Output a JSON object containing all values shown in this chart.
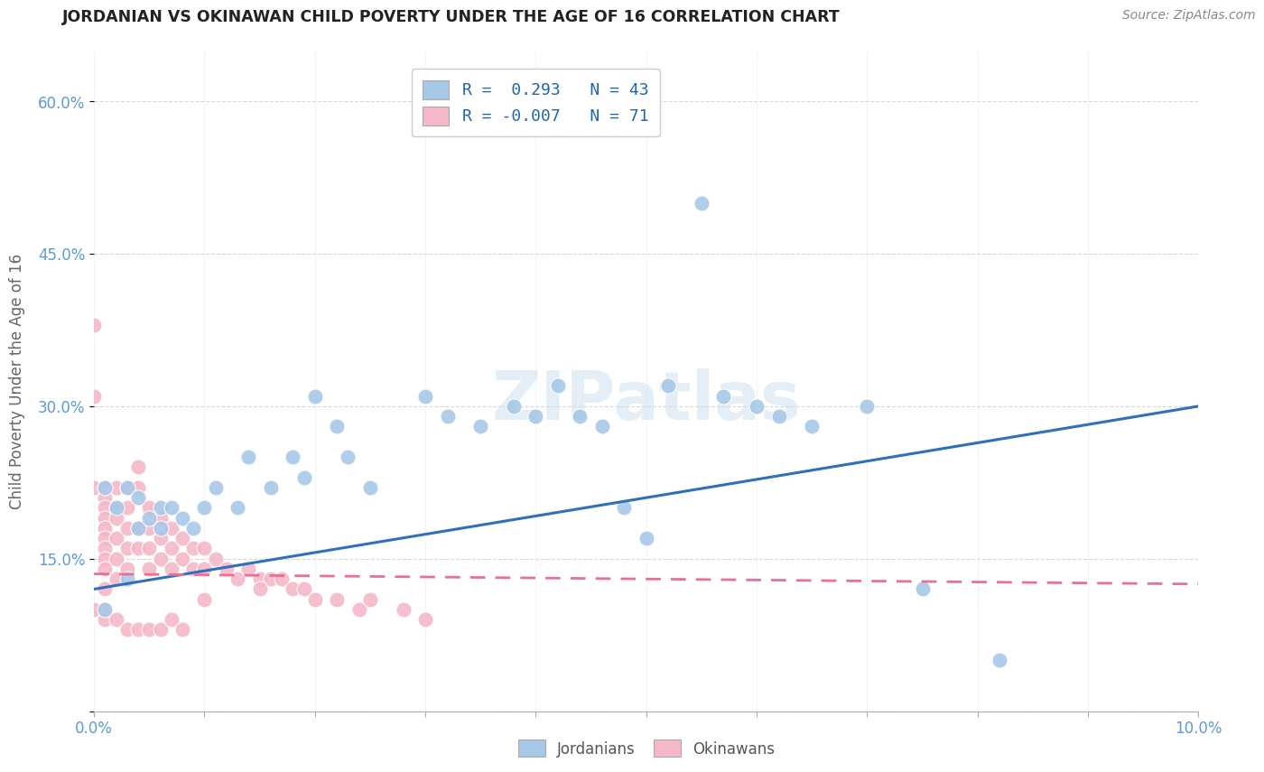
{
  "title": "JORDANIAN VS OKINAWAN CHILD POVERTY UNDER THE AGE OF 16 CORRELATION CHART",
  "source": "Source: ZipAtlas.com",
  "ylabel": "Child Poverty Under the Age of 16",
  "xlim": [
    0.0,
    0.1
  ],
  "ylim": [
    0.0,
    0.65
  ],
  "xticks": [
    0.0,
    0.01,
    0.02,
    0.03,
    0.04,
    0.05,
    0.06,
    0.07,
    0.08,
    0.09,
    0.1
  ],
  "xticklabels": [
    "0.0%",
    "",
    "",
    "",
    "",
    "",
    "",
    "",
    "",
    "",
    "10.0%"
  ],
  "yticks": [
    0.0,
    0.15,
    0.3,
    0.45,
    0.6
  ],
  "yticklabels": [
    "",
    "15.0%",
    "30.0%",
    "45.0%",
    "60.0%"
  ],
  "blue_color": "#a8c8e8",
  "pink_color": "#f4b8c8",
  "blue_edge_color": "#7aaed0",
  "pink_edge_color": "#e890a8",
  "blue_line_color": "#3070b8",
  "pink_line_color": "#e87090",
  "grid_color": "#d8d8d8",
  "watermark": "ZIPatlas",
  "legend_R_blue": "0.293",
  "legend_N_blue": "43",
  "legend_R_pink": "-0.007",
  "legend_N_pink": "71",
  "blue_x": [
    0.001,
    0.002,
    0.003,
    0.004,
    0.004,
    0.005,
    0.006,
    0.006,
    0.007,
    0.008,
    0.009,
    0.01,
    0.011,
    0.013,
    0.014,
    0.016,
    0.018,
    0.019,
    0.02,
    0.022,
    0.023,
    0.025,
    0.03,
    0.032,
    0.035,
    0.038,
    0.04,
    0.042,
    0.044,
    0.046,
    0.048,
    0.05,
    0.052,
    0.055,
    0.057,
    0.06,
    0.062,
    0.065,
    0.07,
    0.075,
    0.082,
    0.001,
    0.003
  ],
  "blue_y": [
    0.22,
    0.2,
    0.22,
    0.21,
    0.18,
    0.19,
    0.2,
    0.18,
    0.2,
    0.19,
    0.18,
    0.2,
    0.22,
    0.2,
    0.25,
    0.22,
    0.25,
    0.23,
    0.31,
    0.28,
    0.25,
    0.22,
    0.31,
    0.29,
    0.28,
    0.3,
    0.29,
    0.32,
    0.29,
    0.28,
    0.2,
    0.17,
    0.32,
    0.5,
    0.31,
    0.3,
    0.29,
    0.28,
    0.3,
    0.12,
    0.05,
    0.1,
    0.13
  ],
  "pink_x": [
    0.0,
    0.0,
    0.0,
    0.001,
    0.001,
    0.001,
    0.001,
    0.001,
    0.001,
    0.001,
    0.001,
    0.001,
    0.001,
    0.001,
    0.002,
    0.002,
    0.002,
    0.002,
    0.002,
    0.002,
    0.003,
    0.003,
    0.003,
    0.003,
    0.003,
    0.004,
    0.004,
    0.004,
    0.004,
    0.005,
    0.005,
    0.005,
    0.005,
    0.006,
    0.006,
    0.006,
    0.007,
    0.007,
    0.007,
    0.008,
    0.008,
    0.009,
    0.009,
    0.01,
    0.01,
    0.011,
    0.012,
    0.013,
    0.014,
    0.015,
    0.016,
    0.017,
    0.018,
    0.019,
    0.02,
    0.022,
    0.024,
    0.025,
    0.028,
    0.03,
    0.0,
    0.001,
    0.002,
    0.003,
    0.004,
    0.005,
    0.006,
    0.007,
    0.008,
    0.01,
    0.015
  ],
  "pink_y": [
    0.38,
    0.31,
    0.22,
    0.22,
    0.21,
    0.2,
    0.19,
    0.18,
    0.17,
    0.16,
    0.15,
    0.14,
    0.12,
    0.1,
    0.22,
    0.2,
    0.19,
    0.17,
    0.15,
    0.13,
    0.22,
    0.2,
    0.18,
    0.16,
    0.14,
    0.24,
    0.22,
    0.18,
    0.16,
    0.2,
    0.18,
    0.16,
    0.14,
    0.19,
    0.17,
    0.15,
    0.18,
    0.16,
    0.14,
    0.17,
    0.15,
    0.16,
    0.14,
    0.16,
    0.14,
    0.15,
    0.14,
    0.13,
    0.14,
    0.13,
    0.13,
    0.13,
    0.12,
    0.12,
    0.11,
    0.11,
    0.1,
    0.11,
    0.1,
    0.09,
    0.1,
    0.09,
    0.09,
    0.08,
    0.08,
    0.08,
    0.08,
    0.09,
    0.08,
    0.11,
    0.12
  ]
}
